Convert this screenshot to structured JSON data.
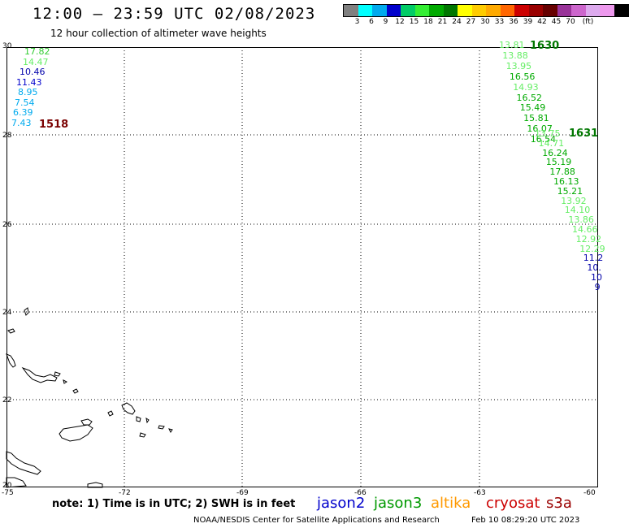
{
  "header": {
    "title": "12:00 – 23:59 UTC 02/08/2023",
    "subtitle": "12 hour collection of altimeter wave heights"
  },
  "colorbar": {
    "colors": [
      "#808080",
      "#00ffff",
      "#00aaee",
      "#0000cc",
      "#00cc66",
      "#33ee33",
      "#00aa00",
      "#007700",
      "#ffff00",
      "#ffcc00",
      "#ffaa00",
      "#ff6600",
      "#cc0000",
      "#990000",
      "#660000",
      "#993399",
      "#cc66cc",
      "#ddaaee",
      "#ee99ee",
      "#000000"
    ],
    "tick_labels": [
      "3",
      "6",
      "9",
      "12",
      "15",
      "18",
      "21",
      "24",
      "27",
      "30",
      "33",
      "36",
      "39",
      "42",
      "45",
      "70",
      "(ft)"
    ]
  },
  "axes": {
    "lon_labels": [
      "-75",
      "-72",
      "-69",
      "-66",
      "-63",
      "-60"
    ],
    "lat_labels": [
      "30",
      "28",
      "26",
      "24",
      "22",
      "20"
    ]
  },
  "passes": [
    {
      "id": "1518",
      "color": "#7a0000",
      "values": [
        "17.82",
        "14.47",
        "10.46",
        "11.43",
        "8.95",
        "7.54",
        "6.39",
        "7.43"
      ],
      "colors": [
        "#33cc33",
        "#66ee66",
        "#0000aa",
        "#0000cc",
        "#00aaee",
        "#00aaee",
        "#00aaee",
        "#00aaee"
      ]
    },
    {
      "id": "1630",
      "color": "#007700",
      "values": [
        "13.81",
        "13.88",
        "13.95",
        "16.56",
        "14.93",
        "16.52",
        "15.49",
        "15.81",
        "16.07",
        "16.54"
      ],
      "colors": [
        "#66ee66",
        "#66ee66",
        "#66ee66",
        "#00aa00",
        "#66ee66",
        "#00aa00",
        "#00aa00",
        "#00aa00",
        "#00aa00",
        "#00aa00"
      ]
    },
    {
      "id": "1631",
      "color": "#007700",
      "values": [
        "13.75",
        "14.71",
        "16.24",
        "15.19",
        "17.88",
        "16.13",
        "15.21",
        "13.92",
        "14.10",
        "13.86",
        "14.66",
        "12.92",
        "12.29",
        "11.2",
        "10.",
        "10",
        "9"
      ],
      "colors": [
        "#66ee66",
        "#66ee66",
        "#00aa00",
        "#00aa00",
        "#00aa00",
        "#00aa00",
        "#00aa00",
        "#66ee66",
        "#66ee66",
        "#66ee66",
        "#66ee66",
        "#66ee66",
        "#66ee66",
        "#0000aa",
        "#0000aa",
        "#0000aa",
        "#0000aa"
      ]
    }
  ],
  "footer": {
    "note": "note: 1) Time is in UTC; 2) SWH is in feet",
    "satellites": [
      {
        "name": "jason2",
        "color": "#0000cc"
      },
      {
        "name": "jason3",
        "color": "#009900"
      },
      {
        "name": "altika",
        "color": "#ff9900"
      },
      {
        "name": "cryosat",
        "color": "#cc0000"
      },
      {
        "name": "s3a",
        "color": "#990000"
      }
    ],
    "credit": "NOAA/NESDIS Center for Satellite Applications and Research",
    "timestamp": "Feb 10 08:29:20 UTC 2023"
  }
}
